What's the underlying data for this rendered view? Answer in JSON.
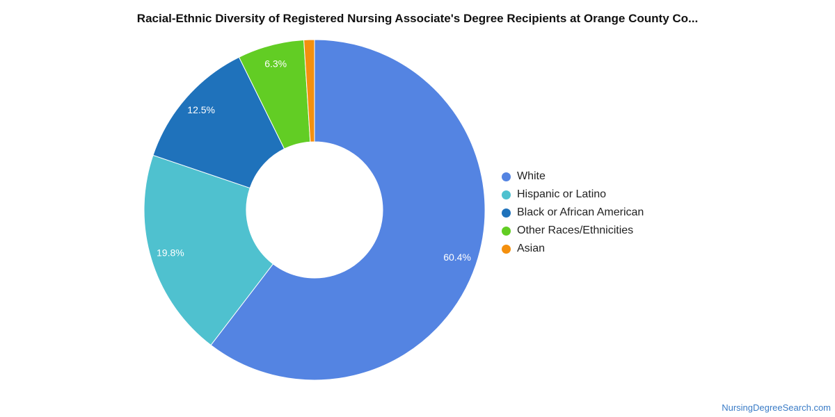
{
  "chart_data": {
    "type": "pie",
    "variant": "donut",
    "title": "Racial-Ethnic Diversity of Registered Nursing Associate's Degree Recipients at Orange County Co...",
    "slices": [
      {
        "label": "White",
        "value": 60.4,
        "value_label": "60.4%",
        "color": "#5484e2"
      },
      {
        "label": "Hispanic or Latino",
        "value": 19.8,
        "value_label": "19.8%",
        "color": "#4fc1cf"
      },
      {
        "label": "Black or African American",
        "value": 12.5,
        "value_label": "12.5%",
        "color": "#1f72bb"
      },
      {
        "label": "Other Races/Ethnicities",
        "value": 6.3,
        "value_label": "6.3%",
        "color": "#62cd24"
      },
      {
        "label": "Asian",
        "value": 1.0,
        "value_label": "",
        "color": "#f4900e"
      }
    ],
    "legend_position": "right"
  },
  "footer": {
    "source": "NursingDegreeSearch.com"
  }
}
